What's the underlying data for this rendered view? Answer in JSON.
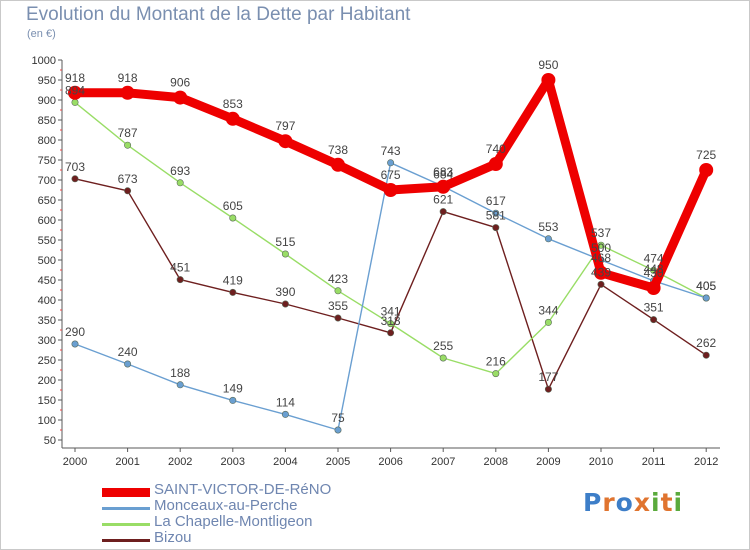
{
  "header": {
    "title": "Evolution du Montant de la Dette par Habitant",
    "unit": "(en €)"
  },
  "logo": {
    "text": "Proxiti",
    "colors": [
      "#3d7ec8",
      "#e0742f",
      "#3d7ec8",
      "#e0742f",
      "#5aaa3c",
      "#e0742f",
      "#5aaa3c"
    ]
  },
  "chart_data": {
    "type": "line",
    "x": [
      "2000",
      "2001",
      "2002",
      "2003",
      "2004",
      "2005",
      "2006",
      "2007",
      "2008",
      "2009",
      "2010",
      "2011",
      "2012"
    ],
    "ylim": [
      50,
      1000
    ],
    "yticks": [
      "50",
      "100",
      "150",
      "200",
      "250",
      "300",
      "350",
      "400",
      "450",
      "500",
      "550",
      "600",
      "650",
      "700",
      "750",
      "800",
      "850",
      "900",
      "950",
      "1000"
    ],
    "grid": false,
    "legend_position": "bottom-left",
    "series": [
      {
        "name": "SAINT-VICTOR-DE-RéNO",
        "color": "#ee0000",
        "values": [
          918,
          918,
          906,
          853,
          797,
          738,
          675,
          683,
          740,
          950,
          468,
          430,
          725
        ],
        "labels": [
          "918",
          "918",
          "906",
          "853",
          "797",
          "738",
          "675",
          "683",
          "740",
          "950",
          "468",
          "430",
          "725"
        ]
      },
      {
        "name": "Monceaux-au-Perche",
        "color": "#6a9fd1",
        "values": [
          290,
          240,
          188,
          149,
          114,
          75,
          743,
          684,
          617,
          553,
          500,
          448,
          405
        ],
        "labels": [
          "290",
          "240",
          "188",
          "149",
          "114",
          "75",
          "743",
          "684",
          "617",
          "553",
          "500",
          "448",
          "405"
        ]
      },
      {
        "name": "La Chapelle-Montligeon",
        "color": "#99dd66",
        "values": [
          894,
          787,
          693,
          605,
          515,
          423,
          341,
          255,
          216,
          344,
          537,
          474,
          405
        ],
        "labels": [
          "894",
          "787",
          "693",
          "605",
          "515",
          "423",
          "341",
          "255",
          "216",
          "344",
          "537",
          "474",
          "405"
        ]
      },
      {
        "name": "Bizou",
        "color": "#6e1f1f",
        "values": [
          703,
          673,
          451,
          419,
          390,
          355,
          318,
          621,
          581,
          177,
          439,
          351,
          262
        ],
        "labels": [
          "703",
          "673",
          "451",
          "419",
          "390",
          "355",
          "318",
          "621",
          "581",
          "177",
          "439",
          "351",
          "262"
        ]
      }
    ]
  }
}
